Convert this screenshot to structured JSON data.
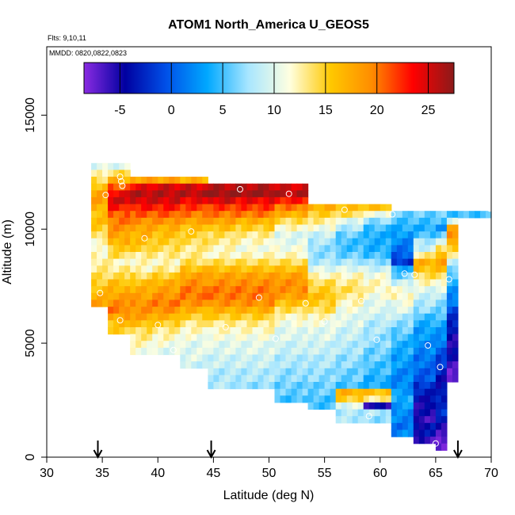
{
  "chart_data": {
    "type": "heatmap",
    "title": "ATOM1 North_America U_GEOS5",
    "subtitle_flights": "Flts: 9,10,11",
    "subtitle_dates": "MMDD: 0820,0822,0823",
    "xlabel": "Latitude (deg N)",
    "ylabel": "Altitude (m)",
    "xlim": [
      30,
      70
    ],
    "ylim": [
      0,
      18000
    ],
    "xticks": [
      30,
      35,
      40,
      45,
      50,
      55,
      60,
      65,
      70
    ],
    "yticks": [
      0,
      5000,
      10000,
      15000
    ],
    "colorbar": {
      "min": -8.5,
      "max": 27.5,
      "ticks": [
        -5,
        0,
        5,
        10,
        15,
        20,
        25
      ],
      "colors": [
        "#8a2be2",
        "#0000a0",
        "#0050e8",
        "#00a8ff",
        "#a8e6ff",
        "#ffffe0",
        "#ffc800",
        "#ff8c00",
        "#ff0000",
        "#8b1a1a"
      ]
    },
    "arrows_lat": [
      34.6,
      44.8,
      67.0
    ],
    "cell_size": {
      "lat": 0.5,
      "alt": 300
    },
    "profiles": [
      {
        "lat0": 34.0,
        "lat1": 35.5,
        "alt_top": 12900,
        "alt_bot": 6600,
        "u": [
          10,
          12,
          14,
          16,
          18,
          18,
          17,
          16,
          16,
          15,
          14,
          12,
          11,
          12,
          13,
          13,
          14,
          15,
          16,
          17,
          18,
          18
        ]
      },
      {
        "lat0": 35.5,
        "lat1": 37.5,
        "alt_top": 12900,
        "alt_bot": 5400,
        "u": [
          10,
          14,
          17,
          21,
          24,
          25,
          23,
          21,
          20,
          19,
          18,
          17,
          15,
          14,
          12,
          13,
          14,
          16,
          17,
          18,
          19,
          20,
          18,
          16,
          15,
          14
        ]
      },
      {
        "lat0": 37.5,
        "lat1": 39.5,
        "alt_top": 12300,
        "alt_bot": 4500,
        "u": [
          18,
          24,
          26,
          25,
          23,
          21,
          19,
          18,
          17,
          16,
          15,
          13,
          12,
          12,
          14,
          16,
          17,
          18,
          19,
          19,
          18,
          16,
          14,
          13,
          12,
          11,
          10
        ]
      },
      {
        "lat0": 39.5,
        "lat1": 42.0,
        "alt_top": 12300,
        "alt_bot": 4500,
        "u": [
          18,
          25,
          26,
          25,
          23,
          21,
          19,
          17,
          16,
          15,
          14,
          13,
          12,
          13,
          15,
          17,
          18,
          19,
          20,
          19,
          17,
          15,
          13,
          12,
          11,
          10,
          10
        ]
      },
      {
        "lat0": 42.0,
        "lat1": 44.5,
        "alt_top": 12300,
        "alt_bot": 3900,
        "u": [
          17,
          25,
          26,
          24,
          22,
          20,
          18,
          16,
          15,
          14,
          13,
          13,
          14,
          16,
          18,
          19,
          20,
          20,
          19,
          17,
          15,
          13,
          12,
          11,
          10,
          10,
          10,
          9,
          9
        ]
      },
      {
        "lat0": 44.5,
        "lat1": 47.0,
        "alt_top": 12000,
        "alt_bot": 3000,
        "u": [
          26,
          27,
          25,
          22,
          20,
          18,
          16,
          14,
          13,
          12,
          12,
          14,
          16,
          18,
          19,
          20,
          20,
          19,
          17,
          15,
          13,
          12,
          11,
          10,
          10,
          9,
          9,
          8,
          8,
          8,
          7
        ]
      },
      {
        "lat0": 47.0,
        "lat1": 50.5,
        "alt_top": 12000,
        "alt_bot": 3000,
        "u": [
          26,
          27,
          24,
          22,
          20,
          17,
          15,
          13,
          12,
          11,
          12,
          14,
          16,
          18,
          19,
          20,
          20,
          19,
          17,
          15,
          13,
          12,
          11,
          10,
          10,
          9,
          9,
          8,
          8,
          7,
          7
        ]
      },
      {
        "lat0": 50.5,
        "lat1": 53.5,
        "alt_top": 12000,
        "alt_bot": 2400,
        "u": [
          25,
          26,
          23,
          20,
          17,
          14,
          12,
          10,
          10,
          11,
          12,
          14,
          16,
          18,
          19,
          19,
          18,
          16,
          14,
          12,
          11,
          10,
          10,
          9,
          9,
          8,
          8,
          7,
          7,
          6,
          6,
          5,
          4
        ]
      },
      {
        "lat0": 53.5,
        "lat1": 56.0,
        "alt_top": 11100,
        "alt_bot": 2100,
        "u": [
          17,
          15,
          13,
          11,
          9,
          8,
          7,
          7,
          8,
          10,
          12,
          14,
          15,
          16,
          15,
          14,
          12,
          11,
          10,
          10,
          9,
          9,
          8,
          8,
          7,
          7,
          6,
          6,
          5,
          5,
          4
        ]
      },
      {
        "lat0": 56.0,
        "lat1": 58.5,
        "alt_top": 11100,
        "alt_bot": 1500,
        "u": [
          16,
          14,
          10,
          8,
          6,
          5,
          5,
          6,
          8,
          10,
          12,
          13,
          14,
          13,
          12,
          11,
          10,
          10,
          9,
          9,
          8,
          8,
          7,
          7,
          6,
          6,
          5,
          17,
          15,
          10,
          8,
          8,
          7
        ]
      },
      {
        "lat0": 58.5,
        "lat1": 61.0,
        "alt_top": 11100,
        "alt_bot": 1500,
        "u": [
          16,
          11,
          7,
          5,
          4,
          4,
          4,
          5,
          7,
          9,
          11,
          12,
          12,
          11,
          10,
          10,
          9,
          8,
          8,
          7,
          7,
          6,
          6,
          5,
          5,
          4,
          4,
          16,
          13,
          -5,
          8,
          7,
          7
        ]
      },
      {
        "lat0": 61.0,
        "lat1": 63.0,
        "alt_top": 10800,
        "alt_bot": 900,
        "u": [
          6,
          5,
          4,
          3,
          2,
          1,
          0,
          -2,
          4,
          6,
          9,
          11,
          12,
          11,
          10,
          8,
          7,
          6,
          5,
          4,
          4,
          3,
          3,
          2,
          2,
          2,
          3,
          4,
          3,
          2,
          2,
          1,
          2
        ]
      },
      {
        "lat0": 63.0,
        "lat1": 65.0,
        "alt_top": 10800,
        "alt_bot": 600,
        "u": [
          6,
          5,
          4,
          5,
          8,
          9,
          13,
          17,
          16,
          14,
          12,
          10,
          9,
          8,
          7,
          5,
          4,
          3,
          3,
          2,
          2,
          1,
          1,
          0,
          0,
          -2,
          -3,
          -4,
          -5,
          -5,
          -6,
          -4,
          -4,
          -6
        ]
      },
      {
        "lat0": 65.0,
        "lat1": 66.0,
        "alt_top": 10800,
        "alt_bot": 300,
        "u": [
          6,
          5,
          3,
          6,
          9,
          14,
          17,
          18,
          16,
          14,
          12,
          10,
          8,
          7,
          6,
          5,
          4,
          3,
          2,
          1,
          0,
          -1,
          -2,
          -3,
          -4,
          -4,
          -4,
          -3,
          -2,
          -2,
          -4,
          -5,
          -6,
          -8,
          -8
        ]
      },
      {
        "lat0": 66.0,
        "lat1": 67.0,
        "alt_top": 10800,
        "alt_bot": 3300,
        "u": [
          5,
          10,
          17,
          19,
          18,
          15,
          12,
          9,
          7,
          5,
          4,
          3,
          2,
          1,
          -1,
          -2,
          -3,
          -4,
          -5,
          -5,
          -5,
          -5,
          -6,
          -7,
          -8,
          -8
        ]
      },
      {
        "lat0": 67.0,
        "lat1": 70.0,
        "alt_top": 10800,
        "alt_bot": 10500,
        "u": [
          5,
          5
        ]
      }
    ],
    "observations": [
      {
        "lat": 34.8,
        "alt": 7200
      },
      {
        "lat": 35.3,
        "alt": 11500
      },
      {
        "lat": 36.6,
        "alt": 12300
      },
      {
        "lat": 36.7,
        "alt": 12100
      },
      {
        "lat": 36.8,
        "alt": 11900
      },
      {
        "lat": 36.6,
        "alt": 6000
      },
      {
        "lat": 38.8,
        "alt": 9600
      },
      {
        "lat": 40.0,
        "alt": 5800
      },
      {
        "lat": 41.4,
        "alt": 4700
      },
      {
        "lat": 43.0,
        "alt": 9900
      },
      {
        "lat": 46.1,
        "alt": 5700
      },
      {
        "lat": 47.4,
        "alt": 11750
      },
      {
        "lat": 49.1,
        "alt": 7000
      },
      {
        "lat": 50.6,
        "alt": 5200
      },
      {
        "lat": 51.8,
        "alt": 11550
      },
      {
        "lat": 53.3,
        "alt": 6750
      },
      {
        "lat": 55.0,
        "alt": 5950
      },
      {
        "lat": 56.8,
        "alt": 10850
      },
      {
        "lat": 58.3,
        "alt": 6850
      },
      {
        "lat": 59.0,
        "alt": 1800
      },
      {
        "lat": 59.7,
        "alt": 5150
      },
      {
        "lat": 61.1,
        "alt": 10650
      },
      {
        "lat": 62.2,
        "alt": 8050
      },
      {
        "lat": 63.1,
        "alt": 8000
      },
      {
        "lat": 64.3,
        "alt": 4900
      },
      {
        "lat": 65.0,
        "alt": 600
      },
      {
        "lat": 65.4,
        "alt": 3950
      },
      {
        "lat": 66.2,
        "alt": 7800
      },
      {
        "lat": 69.9,
        "alt": 10900
      }
    ]
  }
}
